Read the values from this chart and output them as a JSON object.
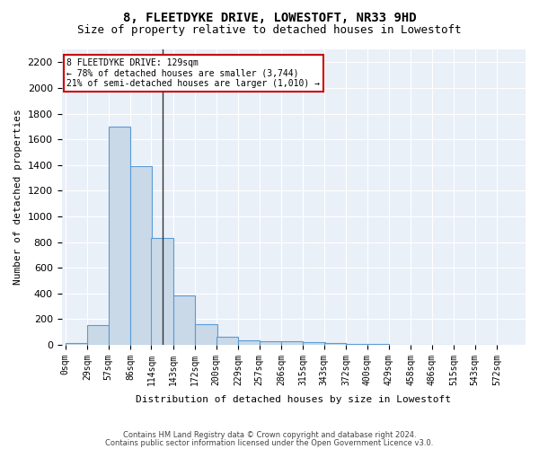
{
  "title1": "8, FLEETDYKE DRIVE, LOWESTOFT, NR33 9HD",
  "title2": "Size of property relative to detached houses in Lowestoft",
  "xlabel": "Distribution of detached houses by size in Lowestoft",
  "ylabel": "Number of detached properties",
  "bar_color": "#c9d9e8",
  "bar_edge_color": "#5b9bd5",
  "background_color": "#eaf0f8",
  "bin_labels": [
    "0sqm",
    "29sqm",
    "57sqm",
    "86sqm",
    "114sqm",
    "143sqm",
    "172sqm",
    "200sqm",
    "229sqm",
    "257sqm",
    "286sqm",
    "315sqm",
    "343sqm",
    "372sqm",
    "400sqm",
    "429sqm",
    "458sqm",
    "486sqm",
    "515sqm",
    "543sqm",
    "572sqm"
  ],
  "bin_edges": [
    0,
    29,
    57,
    86,
    114,
    143,
    172,
    200,
    229,
    257,
    286,
    315,
    343,
    372,
    400,
    429,
    458,
    486,
    515,
    543,
    572
  ],
  "bar_heights": [
    15,
    155,
    1700,
    1390,
    835,
    385,
    160,
    65,
    35,
    30,
    30,
    20,
    10,
    5,
    3,
    2,
    1,
    1,
    0,
    0
  ],
  "property_size": 129,
  "annotation_title": "8 FLEETDYKE DRIVE: 129sqm",
  "annotation_line1": "← 78% of detached houses are smaller (3,744)",
  "annotation_line2": "21% of semi-detached houses are larger (1,010) →",
  "vline_color": "#333333",
  "annotation_box_color": "#cc0000",
  "ylim": [
    0,
    2300
  ],
  "yticks": [
    0,
    200,
    400,
    600,
    800,
    1000,
    1200,
    1400,
    1600,
    1800,
    2000,
    2200
  ],
  "footer1": "Contains HM Land Registry data © Crown copyright and database right 2024.",
  "footer2": "Contains public sector information licensed under the Open Government Licence v3.0."
}
